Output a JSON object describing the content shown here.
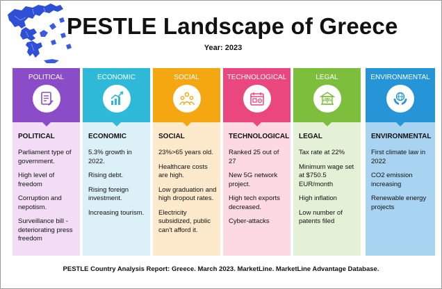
{
  "header": {
    "title": "PESTLE Landscape of Greece",
    "year": "Year: 2023"
  },
  "colors": {
    "political_head": "#8A4CC7",
    "political_body": "#F3DDF6",
    "economic_head": "#2FB9D8",
    "economic_body": "#DCF0F7",
    "social_head": "#F5A712",
    "social_body": "#FDE9CB",
    "technological_head": "#E9477E",
    "technological_body": "#FCD9E3",
    "legal_head": "#7DBE3C",
    "legal_body": "#E5F1D7",
    "environmental_head": "#2595D8",
    "environmental_body": "#A8D4F2",
    "map_blue": "#2E4FD6"
  },
  "columns": [
    {
      "key": "political",
      "label": "POLITICAL",
      "icon": "document-icon",
      "title": "POLITICAL",
      "items": [
        "Parliament type of government.",
        "High level of freedom",
        "Corruption and nepotism.",
        "Surveillance bill - deteriorating press freedom"
      ]
    },
    {
      "key": "economic",
      "label": "ECONOMIC",
      "icon": "growth-chart-icon",
      "title": "ECONOMIC",
      "items": [
        "5.3% growth in 2022.",
        "Rising debt.",
        "Rising foreign investment.",
        "Increasing tourism."
      ]
    },
    {
      "key": "social",
      "label": "SOCIAL",
      "icon": "people-group-icon",
      "title": "SOCIAL",
      "items": [
        "23%>65 years old.",
        "Healthcare costs are high.",
        "Low graduation and high dropout rates.",
        "Electricity subsidized, public can't afford it."
      ]
    },
    {
      "key": "technological",
      "label": "TECHNOLOGICAL",
      "icon": "calendar-gear-icon",
      "title": "TECHNOLOGICAL",
      "items": [
        "Ranked 25 out of 27",
        "New 5G network project.",
        "High tech exports decreased.",
        "Cyber-attacks"
      ]
    },
    {
      "key": "legal",
      "label": "LEGAL",
      "icon": "courthouse-icon",
      "title": "LEGAL",
      "items": [
        "Tax rate at 22%",
        "Minimum wage set at $750.5 EUR/month",
        "High inflation",
        "Low number of patents filed"
      ]
    },
    {
      "key": "environmental",
      "label": "ENVIRONMENTAL",
      "icon": "globe-hands-icon",
      "title": "ENVIRONMENTAL",
      "items": [
        "First climate law in 2022",
        "CO2 emission increasing",
        "Renewable energy projects"
      ]
    }
  ],
  "footer": "PESTLE Country Analysis Report: Greece. March 2023. MarketLine. MarketLine Advantage Database."
}
